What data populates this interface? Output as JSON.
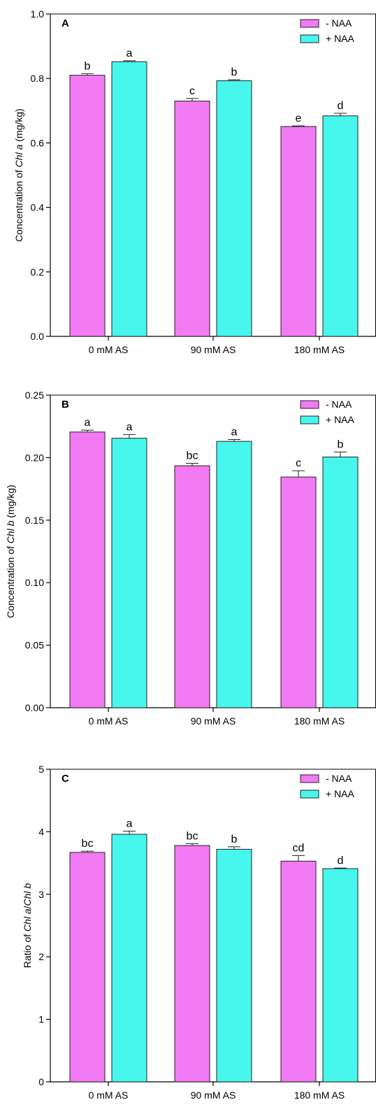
{
  "chart_data": [
    {
      "type": "bar",
      "panel_label": "A",
      "ylabel_parts": [
        "Concentration of ",
        "Chl a",
        " (mg/kg)"
      ],
      "categories": [
        "0 mM AS",
        "90 mM AS",
        "180 mM AS"
      ],
      "series": [
        {
          "name": "- NAA",
          "color": "#f27af2",
          "values": [
            0.81,
            0.73,
            0.651
          ],
          "errors": [
            0.005,
            0.008,
            0.002
          ],
          "letters": [
            "b",
            "c",
            "e"
          ]
        },
        {
          "name": "+ NAA",
          "color": "#47f7ee",
          "values": [
            0.852,
            0.793,
            0.684
          ],
          "errors": [
            0.003,
            0.003,
            0.008
          ],
          "letters": [
            "a",
            "b",
            "d"
          ]
        }
      ],
      "ylim": [
        0,
        1.0
      ],
      "yticks": [
        0.0,
        0.2,
        0.4,
        0.6,
        0.8,
        1.0
      ],
      "ytick_labels": [
        "0.0",
        "0.2",
        "0.4",
        "0.6",
        "0.8",
        "1.0"
      ],
      "legend": "top-right",
      "grid": false
    },
    {
      "type": "bar",
      "panel_label": "B",
      "ylabel_parts": [
        "Concentration of ",
        "Chl b",
        " (mg/kg)"
      ],
      "categories": [
        "0 mM AS",
        "90 mM AS",
        "180 mM AS"
      ],
      "series": [
        {
          "name": "- NAA",
          "color": "#f27af2",
          "values": [
            0.2205,
            0.1935,
            0.1845
          ],
          "errors": [
            0.0015,
            0.002,
            0.005
          ],
          "letters": [
            "a",
            "bc",
            "c"
          ]
        },
        {
          "name": "+ NAA",
          "color": "#47f7ee",
          "values": [
            0.2155,
            0.213,
            0.2005
          ],
          "errors": [
            0.003,
            0.0015,
            0.004
          ],
          "letters": [
            "a",
            "a",
            "b"
          ]
        }
      ],
      "ylim": [
        0,
        0.25
      ],
      "yticks": [
        0.0,
        0.05,
        0.1,
        0.15,
        0.2,
        0.25
      ],
      "ytick_labels": [
        "0.00",
        "0.05",
        "0.10",
        "0.15",
        "0.20",
        "0.25"
      ],
      "legend": "top-right",
      "grid": false
    },
    {
      "type": "bar",
      "panel_label": "C",
      "ylabel_parts": [
        "Ratio of ",
        "Chl a",
        "/",
        "Chl b",
        ""
      ],
      "categories": [
        "0 mM AS",
        "90 mM AS",
        "180 mM AS"
      ],
      "series": [
        {
          "name": "- NAA",
          "color": "#f27af2",
          "values": [
            3.67,
            3.78,
            3.53
          ],
          "errors": [
            0.02,
            0.03,
            0.09
          ],
          "letters": [
            "bc",
            "bc",
            "cd"
          ]
        },
        {
          "name": "+ NAA",
          "color": "#47f7ee",
          "values": [
            3.96,
            3.72,
            3.41
          ],
          "errors": [
            0.05,
            0.04,
            0.01
          ],
          "letters": [
            "a",
            "b",
            "d"
          ]
        }
      ],
      "ylim": [
        0,
        5
      ],
      "yticks": [
        0,
        1,
        2,
        3,
        4,
        5
      ],
      "ytick_labels": [
        "0",
        "1",
        "2",
        "3",
        "4",
        "5"
      ],
      "legend": "top-right",
      "grid": false
    }
  ]
}
